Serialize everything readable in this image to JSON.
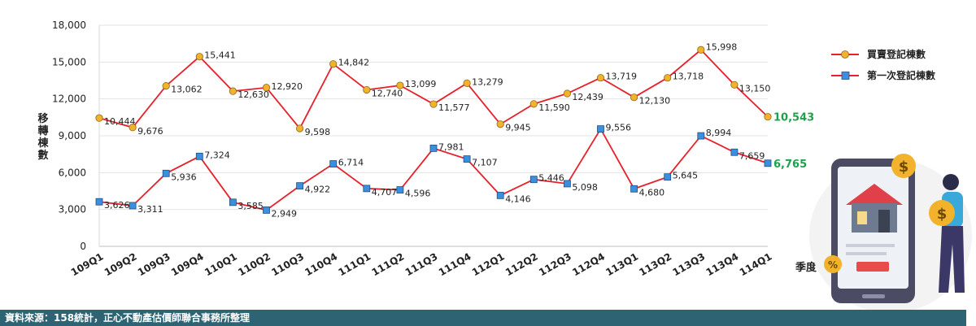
{
  "chart_data": {
    "type": "line",
    "categories": [
      "109Q1",
      "109Q2",
      "109Q3",
      "109Q4",
      "110Q1",
      "110Q2",
      "110Q3",
      "110Q4",
      "111Q1",
      "111Q2",
      "111Q3",
      "111Q4",
      "112Q1",
      "112Q2",
      "112Q3",
      "112Q4",
      "113Q1",
      "113Q2",
      "113Q3",
      "113Q4",
      "114Q1"
    ],
    "series": [
      {
        "name": "買賣登記棟數",
        "color": "#e8202a",
        "marker": "circle",
        "marker_color": "#f2b22c",
        "values": [
          10444,
          9676,
          13062,
          15441,
          12630,
          12920,
          9598,
          14842,
          12740,
          13099,
          11577,
          13279,
          9945,
          11590,
          12439,
          13719,
          12130,
          13718,
          15998,
          13150,
          10543
        ],
        "labels": [
          "10,444",
          "9,676",
          "13,062",
          "15,441",
          "12,630",
          "12,920",
          "9,598",
          "14,842",
          "12,740",
          "13,099",
          "11,577",
          "13,279",
          "9,945",
          "11,590",
          "12,439",
          "13,719",
          "12,130",
          "13,718",
          "15,998",
          "13,150",
          "10,543"
        ]
      },
      {
        "name": "第一次登記棟數",
        "color": "#e8202a",
        "marker": "square",
        "marker_color": "#3a8fde",
        "values": [
          3626,
          3311,
          5936,
          7324,
          3585,
          2949,
          4922,
          6714,
          4707,
          4596,
          7981,
          7107,
          4146,
          5446,
          5098,
          9556,
          4680,
          5645,
          8994,
          7659,
          6765
        ],
        "labels": [
          "3,626",
          "3,311",
          "5,936",
          "7,324",
          "3,585",
          "2,949",
          "4,922",
          "6,714",
          "4,707",
          "4,596",
          "7,981",
          "7,107",
          "4,146",
          "5,446",
          "5,098",
          "9,556",
          "4,680",
          "5,645",
          "8,994",
          "7,659",
          "6,765"
        ]
      }
    ],
    "ylim": [
      0,
      18000
    ],
    "yticks": [
      0,
      3000,
      6000,
      9000,
      12000,
      15000,
      18000
    ],
    "ytick_labels": [
      "0",
      "3,000",
      "6,000",
      "9,000",
      "12,000",
      "15,000",
      "18,000"
    ],
    "ylabel": "移轉棟數",
    "xlabel": "季度",
    "legend_position": "right",
    "last_value_color": "#1aa34a"
  },
  "footer": {
    "source": "資料來源：158統計，正心不動產估價師聯合事務所整理"
  },
  "illustration": {
    "icons": [
      "phone-icon",
      "house-icon",
      "dollar-coin-icon",
      "percent-coin-icon",
      "person-icon"
    ]
  }
}
